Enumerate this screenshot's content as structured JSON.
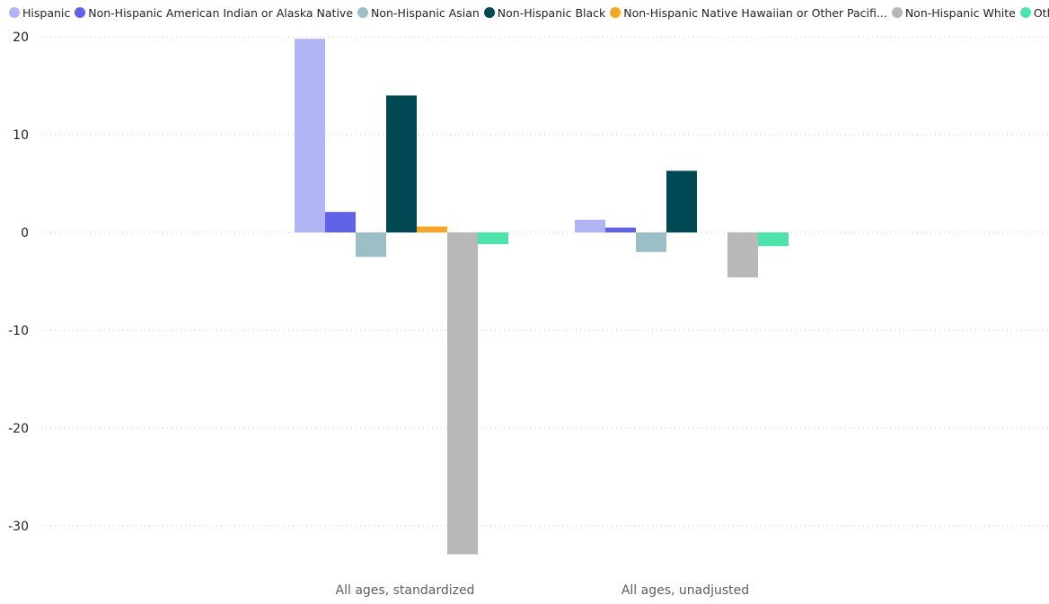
{
  "chart_data": {
    "type": "bar",
    "categories": [
      "All ages, standardized",
      "All ages, unadjusted"
    ],
    "series": [
      {
        "name": "Hispanic",
        "color": "#b0b4f4",
        "values": [
          19.8,
          1.3
        ]
      },
      {
        "name": "Non-Hispanic American Indian or Alaska Native",
        "color": "#6163e6",
        "values": [
          2.1,
          0.5
        ]
      },
      {
        "name": "Non-Hispanic Asian",
        "color": "#9bbfc4",
        "values": [
          -2.5,
          -2.0
        ]
      },
      {
        "name": "Non-Hispanic Black",
        "color": "#004853",
        "values": [
          14.0,
          6.3
        ]
      },
      {
        "name": "Non-Hispanic Native Hawaiian or Other Pacifi...",
        "color": "#f5a623",
        "values": [
          0.6,
          0.0
        ]
      },
      {
        "name": "Non-Hispanic White",
        "color": "#b8b8b8",
        "values": [
          -32.9,
          -4.6
        ]
      },
      {
        "name": "Other",
        "color": "#4fe3ac",
        "values": [
          -1.2,
          -1.4
        ]
      }
    ],
    "ylim": [
      -33,
      20
    ],
    "yticks": [
      20,
      10,
      0,
      -10,
      -20,
      -30
    ],
    "grid": true,
    "legend_position": "top-left"
  }
}
